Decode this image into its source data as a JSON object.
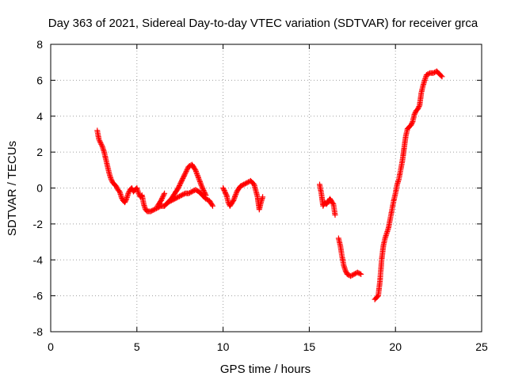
{
  "chart_data": {
    "type": "scatter",
    "title": "Day 363 of 2021, Sidereal Day-to-day VTEC variation (SDTVAR) for receiver grca",
    "xlabel": "GPS time / hours",
    "ylabel": "SDTVAR / TECUs",
    "xlim": [
      0,
      25
    ],
    "ylim": [
      -8,
      8
    ],
    "xticks": [
      0,
      5,
      10,
      15,
      20,
      25
    ],
    "yticks": [
      -8,
      -6,
      -4,
      -2,
      0,
      2,
      4,
      6,
      8
    ],
    "grid": true,
    "marker": "plus",
    "color": "#ff0000",
    "series": [
      {
        "segments": [
          [
            [
              2.7,
              3.2
            ],
            [
              2.8,
              2.7
            ],
            [
              2.9,
              2.5
            ],
            [
              3.0,
              2.3
            ],
            [
              3.1,
              2.0
            ],
            [
              3.2,
              1.6
            ],
            [
              3.3,
              1.2
            ],
            [
              3.4,
              0.8
            ],
            [
              3.5,
              0.5
            ],
            [
              3.6,
              0.3
            ],
            [
              3.7,
              0.2
            ],
            [
              3.8,
              0.1
            ],
            [
              3.9,
              -0.1
            ],
            [
              4.0,
              -0.2
            ],
            [
              4.1,
              -0.5
            ],
            [
              4.2,
              -0.7
            ],
            [
              4.3,
              -0.8
            ],
            [
              4.4,
              -0.6
            ],
            [
              4.5,
              -0.3
            ],
            [
              4.6,
              -0.1
            ],
            [
              4.7,
              0.0
            ],
            [
              4.8,
              -0.2
            ],
            [
              4.9,
              -0.1
            ],
            [
              5.0,
              0.0
            ],
            [
              5.1,
              -0.3
            ],
            [
              5.2,
              -0.5
            ],
            [
              5.3,
              -0.4
            ],
            [
              5.4,
              -0.9
            ],
            [
              5.5,
              -1.2
            ],
            [
              5.6,
              -1.3
            ],
            [
              5.8,
              -1.3
            ],
            [
              6.0,
              -1.2
            ],
            [
              6.2,
              -1.1
            ],
            [
              6.4,
              -1.0
            ],
            [
              6.6,
              -1.0
            ],
            [
              6.8,
              -0.8
            ],
            [
              7.0,
              -0.7
            ],
            [
              7.2,
              -0.6
            ],
            [
              7.4,
              -0.5
            ],
            [
              7.6,
              -0.4
            ],
            [
              7.8,
              -0.3
            ],
            [
              8.0,
              -0.3
            ],
            [
              8.2,
              -0.2
            ],
            [
              8.4,
              -0.1
            ],
            [
              8.6,
              -0.2
            ],
            [
              8.8,
              -0.4
            ],
            [
              9.0,
              -0.6
            ],
            [
              9.2,
              -0.7
            ],
            [
              9.4,
              -1.0
            ]
          ],
          [
            [
              6.8,
              -0.8
            ],
            [
              7.0,
              -0.6
            ],
            [
              7.2,
              -0.3
            ],
            [
              7.4,
              0.0
            ],
            [
              7.6,
              0.4
            ],
            [
              7.8,
              0.8
            ],
            [
              8.0,
              1.2
            ],
            [
              8.2,
              1.3
            ],
            [
              8.4,
              1.0
            ],
            [
              8.6,
              0.5
            ],
            [
              8.8,
              0.0
            ],
            [
              9.0,
              -0.4
            ]
          ],
          [
            [
              6.2,
              -1.0
            ],
            [
              6.4,
              -0.7
            ],
            [
              6.6,
              -0.3
            ]
          ],
          [
            [
              10.0,
              0.0
            ],
            [
              10.2,
              -0.4
            ],
            [
              10.3,
              -0.8
            ],
            [
              10.4,
              -1.0
            ],
            [
              10.6,
              -0.7
            ],
            [
              10.8,
              -0.2
            ],
            [
              11.0,
              0.1
            ],
            [
              11.2,
              0.2
            ],
            [
              11.4,
              0.3
            ],
            [
              11.6,
              0.4
            ],
            [
              11.8,
              0.2
            ],
            [
              12.0,
              -0.5
            ],
            [
              12.1,
              -1.2
            ],
            [
              12.2,
              -0.8
            ],
            [
              12.3,
              -0.5
            ]
          ],
          [
            [
              15.6,
              0.2
            ],
            [
              15.7,
              -0.3
            ],
            [
              15.8,
              -1.0
            ],
            [
              15.9,
              -0.8
            ],
            [
              16.0,
              -0.9
            ],
            [
              16.2,
              -0.6
            ],
            [
              16.4,
              -0.9
            ],
            [
              16.5,
              -1.5
            ]
          ],
          [
            [
              16.7,
              -2.8
            ],
            [
              16.8,
              -3.2
            ],
            [
              16.9,
              -3.8
            ],
            [
              17.0,
              -4.3
            ],
            [
              17.1,
              -4.6
            ],
            [
              17.2,
              -4.8
            ],
            [
              17.4,
              -4.9
            ],
            [
              17.6,
              -4.8
            ],
            [
              17.8,
              -4.7
            ],
            [
              18.0,
              -4.8
            ]
          ],
          [
            [
              18.8,
              -6.2
            ],
            [
              18.9,
              -6.1
            ],
            [
              19.0,
              -6.0
            ],
            [
              19.1,
              -5.2
            ],
            [
              19.2,
              -4.0
            ],
            [
              19.3,
              -3.2
            ],
            [
              19.4,
              -2.8
            ],
            [
              19.5,
              -2.5
            ],
            [
              19.6,
              -2.2
            ],
            [
              19.7,
              -1.7
            ],
            [
              19.8,
              -1.2
            ],
            [
              19.9,
              -0.7
            ],
            [
              20.0,
              -0.3
            ],
            [
              20.1,
              0.2
            ],
            [
              20.2,
              0.5
            ],
            [
              20.3,
              1.0
            ],
            [
              20.4,
              1.5
            ],
            [
              20.5,
              2.2
            ],
            [
              20.6,
              2.9
            ],
            [
              20.7,
              3.3
            ],
            [
              20.8,
              3.4
            ],
            [
              20.9,
              3.5
            ],
            [
              21.0,
              3.7
            ],
            [
              21.1,
              4.1
            ],
            [
              21.2,
              4.3
            ],
            [
              21.3,
              4.4
            ],
            [
              21.4,
              4.6
            ],
            [
              21.5,
              5.3
            ],
            [
              21.6,
              5.7
            ],
            [
              21.7,
              6.0
            ],
            [
              21.8,
              6.3
            ],
            [
              22.0,
              6.4
            ],
            [
              22.2,
              6.4
            ],
            [
              22.4,
              6.5
            ],
            [
              22.6,
              6.3
            ],
            [
              22.7,
              6.2
            ]
          ]
        ]
      }
    ]
  }
}
